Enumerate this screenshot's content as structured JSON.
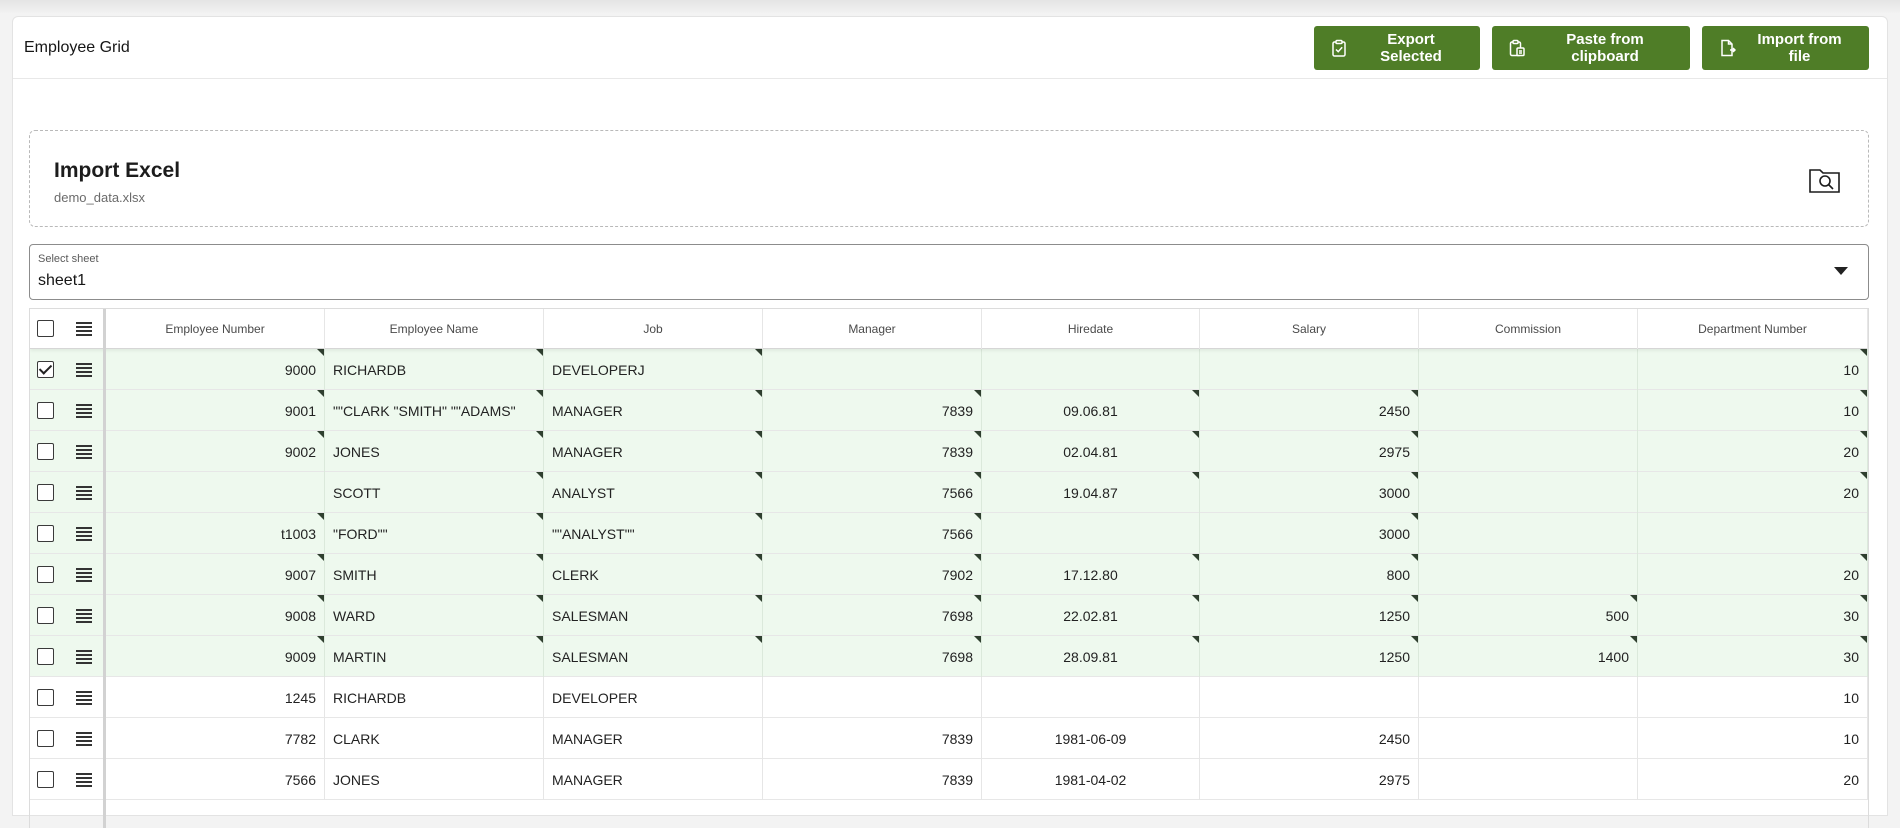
{
  "header": {
    "title": "Employee Grid",
    "buttons": {
      "export_label": "Export Selected",
      "paste_label": "Paste from clipboard",
      "import_label": "Import from file"
    }
  },
  "import": {
    "title": "Import Excel",
    "filename": "demo_data.xlsx"
  },
  "sheet_select": {
    "label": "Select sheet",
    "value": "sheet1"
  },
  "colors": {
    "button": "#4f7d27",
    "changed_row": "#eef9ee"
  },
  "grid": {
    "columns": [
      "Employee Number",
      "Employee Name",
      "Job",
      "Manager",
      "Hiredate",
      "Salary",
      "Commission",
      "Department Number"
    ],
    "rows": [
      {
        "checked": true,
        "changed": true,
        "cells": [
          "9000",
          "RICHARDB",
          "DEVELOPERJ",
          "",
          "",
          "",
          "",
          "10"
        ]
      },
      {
        "checked": false,
        "changed": true,
        "cells": [
          "9001",
          "\"\"CLARK \"SMITH\" \"\"ADAMS\"",
          "MANAGER",
          "7839",
          "09.06.81",
          "2450",
          "",
          "10"
        ]
      },
      {
        "checked": false,
        "changed": true,
        "cells": [
          "9002",
          "JONES",
          "MANAGER",
          "7839",
          "02.04.81",
          "2975",
          "",
          "20"
        ]
      },
      {
        "checked": false,
        "changed": true,
        "cells": [
          "",
          "SCOTT",
          "ANALYST",
          "7566",
          "19.04.87",
          "3000",
          "",
          "20"
        ]
      },
      {
        "checked": false,
        "changed": true,
        "cells": [
          "t1003",
          "\"FORD\"\"",
          "\"\"ANALYST\"\"",
          "7566",
          "",
          "3000",
          "",
          ""
        ]
      },
      {
        "checked": false,
        "changed": true,
        "cells": [
          "9007",
          "SMITH",
          "CLERK",
          "7902",
          "17.12.80",
          "800",
          "",
          "20"
        ]
      },
      {
        "checked": false,
        "changed": true,
        "cells": [
          "9008",
          "WARD",
          "SALESMAN",
          "7698",
          "22.02.81",
          "1250",
          "500",
          "30"
        ]
      },
      {
        "checked": false,
        "changed": true,
        "cells": [
          "9009",
          "MARTIN",
          "SALESMAN",
          "7698",
          "28.09.81",
          "1250",
          "1400",
          "30"
        ]
      },
      {
        "checked": false,
        "changed": false,
        "cells": [
          "1245",
          "RICHARDB",
          "DEVELOPER",
          "",
          "",
          "",
          "",
          "10"
        ]
      },
      {
        "checked": false,
        "changed": false,
        "cells": [
          "7782",
          "CLARK",
          "MANAGER",
          "7839",
          "1981-06-09",
          "2450",
          "",
          "10"
        ]
      },
      {
        "checked": false,
        "changed": false,
        "cells": [
          "7566",
          "JONES",
          "MANAGER",
          "7839",
          "1981-04-02",
          "2975",
          "",
          "20"
        ]
      }
    ]
  }
}
